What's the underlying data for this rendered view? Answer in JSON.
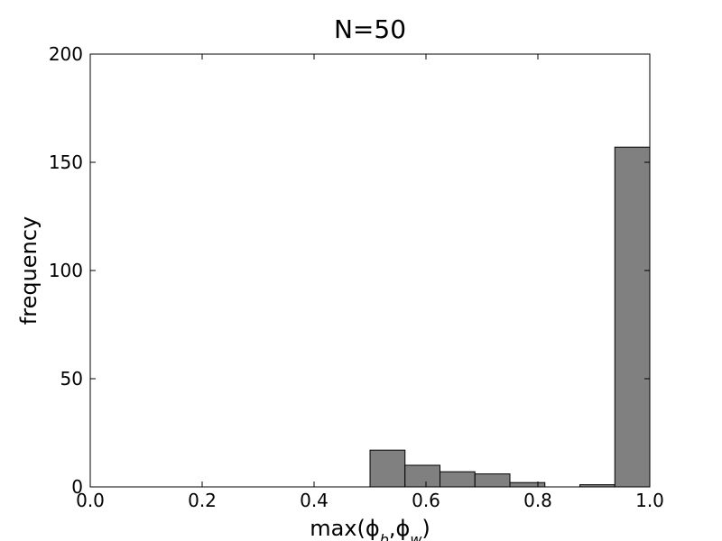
{
  "chart_data": {
    "type": "histogram",
    "title": "N=50",
    "xlabel": "max(ϕ_b,ϕ_w)",
    "ylabel": "frequency",
    "bins": [
      0.5,
      0.5625,
      0.625,
      0.6875,
      0.75,
      0.8125,
      0.875,
      0.9375,
      1.0
    ],
    "values": [
      17,
      10,
      7,
      6,
      2,
      0,
      1,
      157
    ],
    "color": "#808080",
    "xlim": [
      0,
      1
    ],
    "ylim": [
      0,
      200
    ],
    "xticks": [
      {
        "value": 0,
        "label": "0.0"
      },
      0.2,
      0.4,
      0.6,
      0.8,
      {
        "value": 1,
        "label": "1.0"
      }
    ],
    "yticks": [
      0,
      50,
      100,
      150,
      200
    ]
  }
}
